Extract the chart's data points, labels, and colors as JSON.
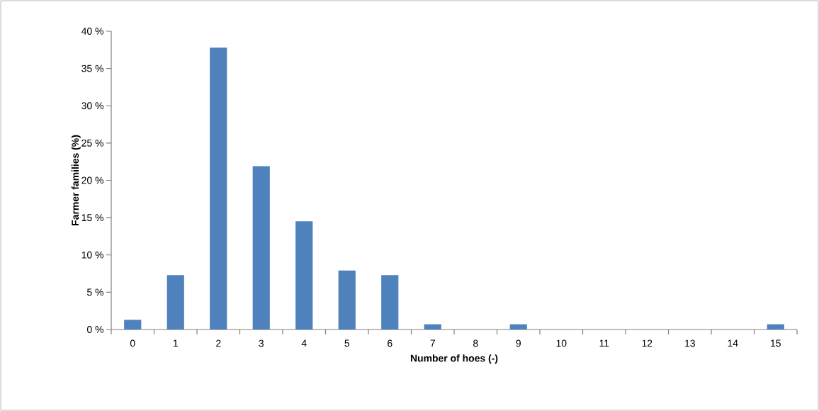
{
  "chart_data": {
    "type": "bar",
    "xlabel": "Number of hoes (-)",
    "ylabel": "Farmer families (%)",
    "categories": [
      "0",
      "1",
      "2",
      "3",
      "4",
      "5",
      "6",
      "7",
      "8",
      "9",
      "10",
      "11",
      "12",
      "13",
      "14",
      "15"
    ],
    "values": [
      1.3,
      7.3,
      37.8,
      21.9,
      14.5,
      7.9,
      7.3,
      0.7,
      0,
      0.7,
      0,
      0,
      0,
      0,
      0,
      0.7
    ],
    "color": "#4f81bd",
    "ylim": [
      0,
      40
    ],
    "yticks": [
      {
        "value": 0,
        "label": "0 %"
      },
      {
        "value": 5,
        "label": "5 %"
      },
      {
        "value": 10,
        "label": "10 %"
      },
      {
        "value": 15,
        "label": "15 %"
      },
      {
        "value": 20,
        "label": "20 %"
      },
      {
        "value": 25,
        "label": "25 %"
      },
      {
        "value": 30,
        "label": "30 %"
      },
      {
        "value": 35,
        "label": "35 %"
      },
      {
        "value": 40,
        "label": "40 %"
      }
    ]
  }
}
